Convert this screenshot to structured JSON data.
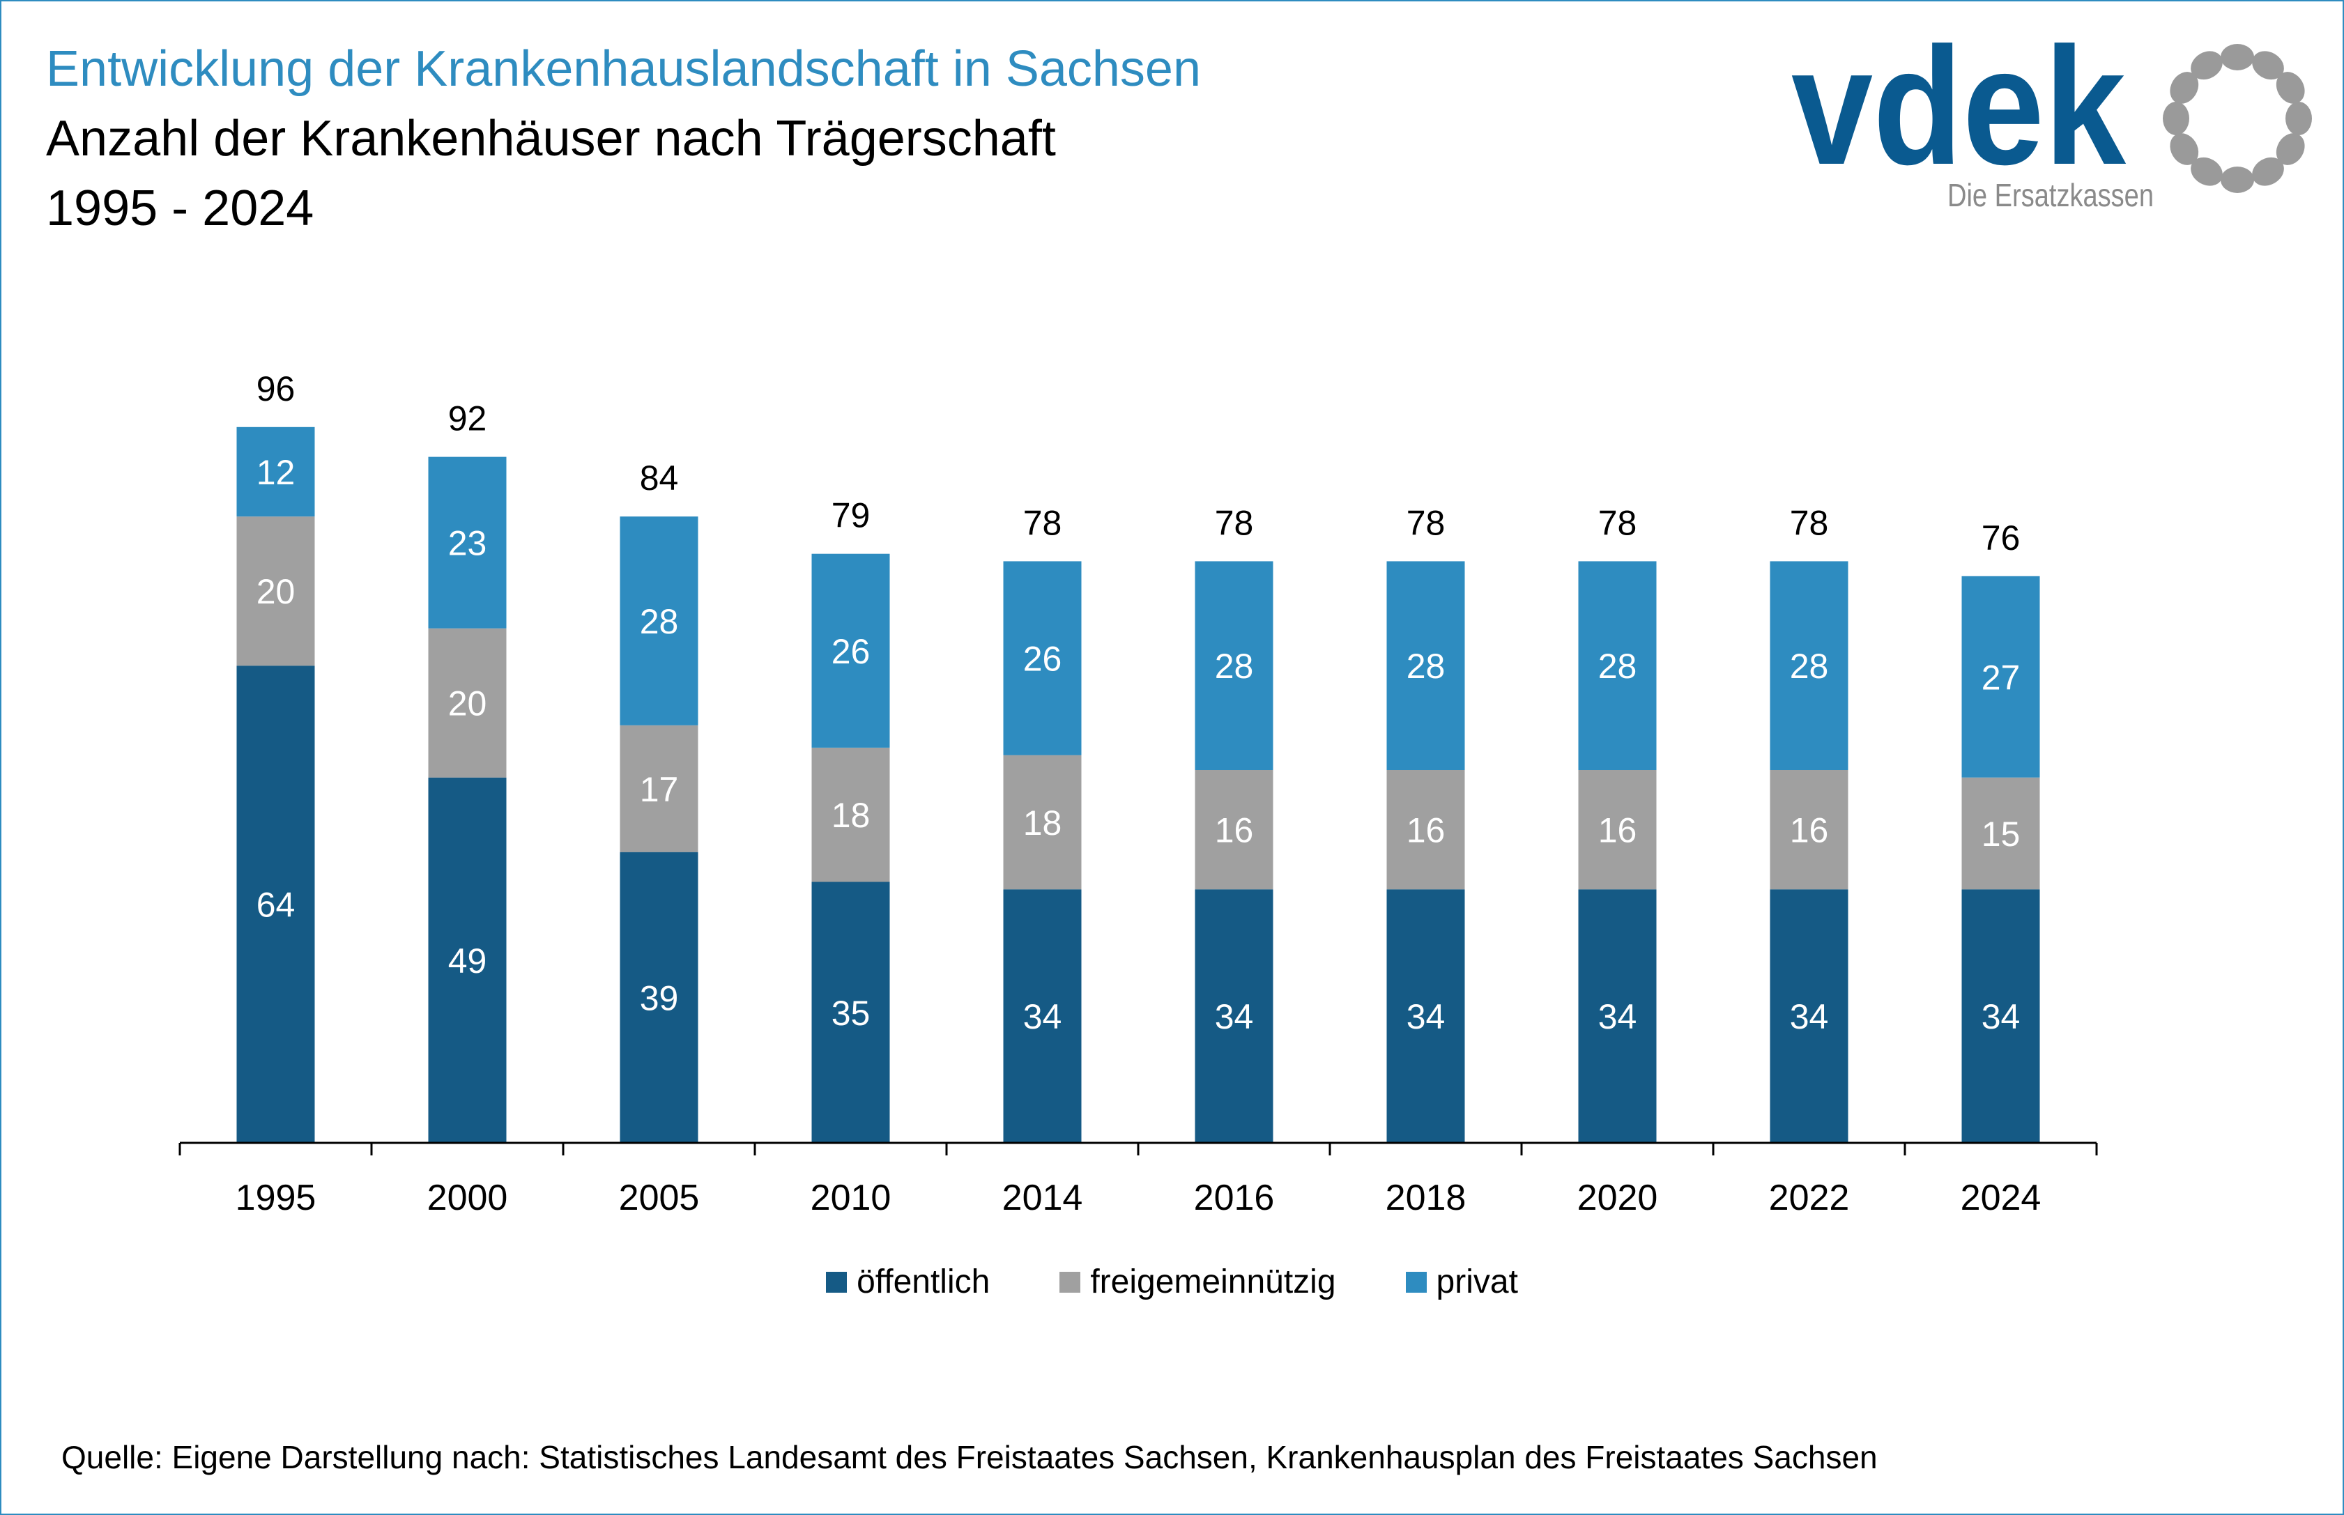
{
  "header": {
    "title": "Entwicklung der Krankenhauslandschaft in Sachsen",
    "subtitle": "Anzahl der Krankenhäuser nach Trägerschaft",
    "period": "1995 - 2024"
  },
  "logo": {
    "wordmark": "vdek",
    "tagline": "Die Ersatzkassen",
    "color_primary": "#0a5a90",
    "color_secondary": "#9a9a9a"
  },
  "chart_data": {
    "type": "bar",
    "stacked": true,
    "categories": [
      "1995",
      "2000",
      "2005",
      "2010",
      "2014",
      "2016",
      "2018",
      "2020",
      "2022",
      "2024"
    ],
    "series": [
      {
        "name": "öffentlich",
        "color": "#155a85",
        "values": [
          64,
          49,
          39,
          35,
          34,
          34,
          34,
          34,
          34,
          34
        ]
      },
      {
        "name": "freigemeinnützig",
        "color": "#a0a0a0",
        "values": [
          20,
          20,
          17,
          18,
          18,
          16,
          16,
          16,
          16,
          15
        ]
      },
      {
        "name": "privat",
        "color": "#2e8cc0",
        "values": [
          12,
          23,
          28,
          26,
          26,
          28,
          28,
          28,
          28,
          27
        ]
      }
    ],
    "totals": [
      96,
      92,
      84,
      79,
      78,
      78,
      78,
      78,
      78,
      76
    ],
    "legend_position": "bottom",
    "grid": false
  },
  "source": "Quelle: Eigene Darstellung nach: Statistisches Landesamt des Freistaates Sachsen, Krankenhausplan des Freistaates Sachsen"
}
